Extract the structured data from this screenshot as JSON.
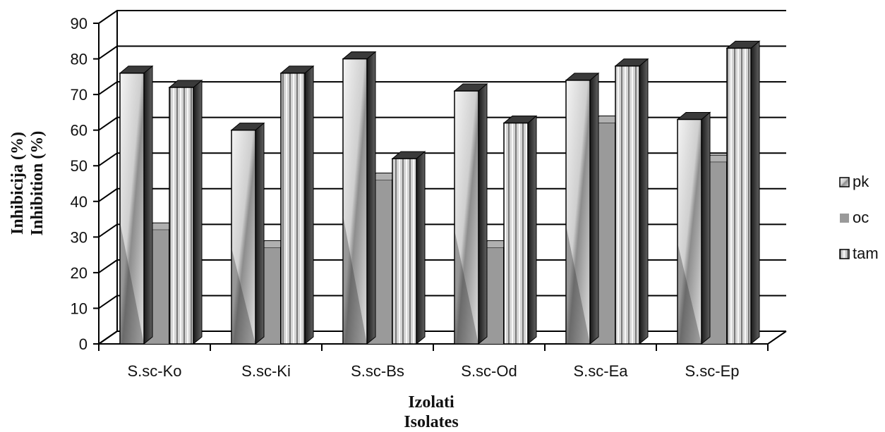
{
  "chart_data": {
    "type": "bar",
    "categories": [
      "S.sc-Ko",
      "S.sc-Ki",
      "S.sc-Bs",
      "S.sc-Od",
      "S.sc-Ea",
      "S.sc-Ep"
    ],
    "series": [
      {
        "name": "pk",
        "values": [
          76,
          60,
          80,
          71,
          74,
          63
        ]
      },
      {
        "name": "oc",
        "values": [
          32,
          27,
          46,
          27,
          62,
          51
        ]
      },
      {
        "name": "tam",
        "values": [
          72,
          76,
          52,
          62,
          78,
          83
        ]
      }
    ],
    "ylim": [
      0,
      90
    ],
    "yticks": [
      0,
      10,
      20,
      30,
      40,
      50,
      60,
      70,
      80,
      90
    ],
    "ylabel_line1": "Inhibicija  (%)",
    "ylabel_line2": "Inhibition  (%)",
    "xlabel_line1": "Izolati",
    "xlabel_line2": "Isolates",
    "grid": true,
    "legend_position": "right",
    "colors": {
      "pk": "#d8d8d8",
      "oc": "#9a9a9a",
      "tam": "#bfbfbf",
      "grid": "#000000"
    }
  }
}
